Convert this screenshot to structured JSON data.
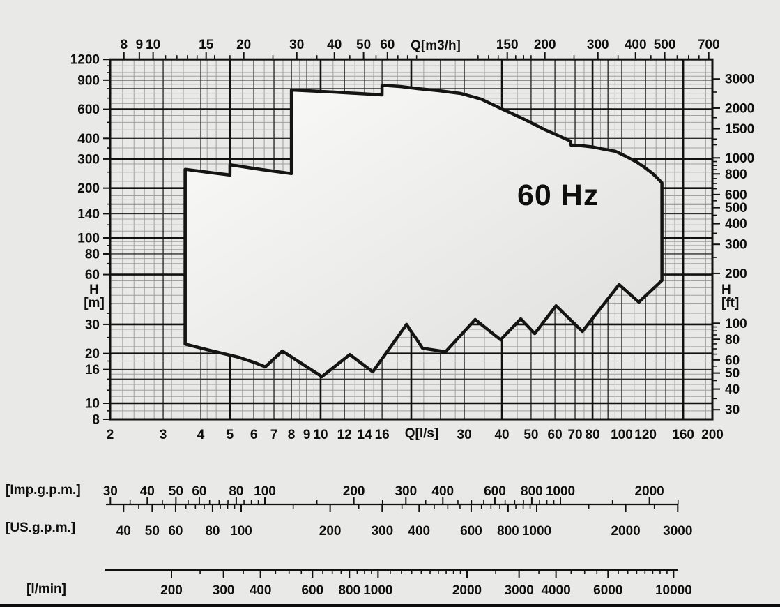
{
  "chart_data": {
    "type": "area",
    "title": "60 Hz",
    "description": "Pump performance envelope, flow (Q) vs head (H), log-log grid",
    "x_axes": {
      "top": {
        "label": "Q[m3/h]",
        "labeled_ticks": [
          8,
          9,
          10,
          15,
          20,
          30,
          40,
          50,
          60,
          150,
          200,
          300,
          400,
          500,
          700
        ],
        "minor_ticks": [
          11,
          12,
          13,
          14,
          16,
          18,
          25,
          35,
          45,
          55,
          65,
          70,
          75,
          120,
          130,
          140,
          160,
          170,
          180,
          250,
          350,
          450,
          550,
          600,
          650
        ]
      },
      "bottom": {
        "label": "Q[l/s]",
        "range_ls": [
          2,
          200
        ],
        "labeled_ticks": [
          2,
          3,
          4,
          5,
          6,
          7,
          8,
          9,
          10,
          12,
          14,
          16,
          30,
          40,
          50,
          60,
          70,
          80,
          100,
          120,
          160,
          200
        ],
        "minor_ticks": [
          2.2,
          2.5,
          2.8,
          3.5,
          4.5,
          5.5,
          6.5,
          7.5,
          8.5,
          9.5,
          11,
          13,
          15,
          35,
          45,
          55,
          65,
          75,
          85,
          90,
          95,
          110,
          130,
          140,
          150,
          170,
          180,
          190
        ]
      }
    },
    "y_axes": {
      "left": {
        "symbol": "H",
        "unit": "[m]",
        "range_m": [
          8,
          1200
        ],
        "labeled_ticks": [
          1200,
          900,
          600,
          400,
          300,
          200,
          140,
          100,
          80,
          60,
          30,
          20,
          16,
          10,
          8
        ],
        "minor_ticks": [
          9,
          12,
          14,
          18,
          25,
          35,
          70,
          90,
          120,
          160,
          250,
          350,
          500,
          700,
          800,
          1000,
          1100
        ]
      },
      "right": {
        "symbol": "H",
        "unit": "[ft]",
        "labeled_ticks": [
          3000,
          2000,
          1500,
          1000,
          800,
          600,
          500,
          400,
          300,
          200,
          100,
          80,
          60,
          50,
          40,
          30
        ],
        "minor_ticks": [
          35,
          45,
          55,
          65,
          70,
          75,
          85,
          90,
          95,
          250,
          350,
          450,
          550,
          650,
          700,
          750,
          850,
          900,
          950,
          1200,
          1300,
          1750,
          2500
        ]
      }
    },
    "grid": {
      "vertical_ls": {
        "thick": [
          5,
          10,
          20,
          40,
          80,
          160
        ],
        "medium": [
          3,
          4,
          6,
          7,
          8,
          9,
          12,
          14,
          16,
          25,
          30,
          50,
          60,
          70,
          90,
          100,
          120,
          140
        ],
        "minor": [
          2.2,
          2.4,
          2.6,
          2.8,
          3.2,
          3.5,
          4.2,
          4.5,
          5.5,
          6.5,
          7.5,
          8.5,
          9.5,
          11,
          13,
          15,
          17,
          18,
          22,
          28,
          35,
          45,
          55,
          65,
          75,
          85,
          95,
          110,
          130,
          150,
          170,
          190
        ]
      },
      "horizontal_m": {
        "thick": [
          10,
          20,
          30,
          60,
          100,
          200,
          300,
          600
        ],
        "medium": [
          14,
          16,
          40,
          80,
          140,
          160,
          400,
          800,
          900
        ],
        "minor": [
          9,
          11,
          12,
          13,
          15,
          18,
          22,
          25,
          28,
          35,
          45,
          50,
          55,
          65,
          70,
          75,
          85,
          90,
          95,
          110,
          120,
          130,
          150,
          170,
          180,
          220,
          250,
          280,
          350,
          450,
          500,
          550,
          650,
          700,
          750,
          850,
          950,
          1000,
          1100
        ]
      }
    },
    "envelope_q_ls_h_m": [
      [
        3.55,
        260
      ],
      [
        4.26,
        249
      ],
      [
        5,
        240
      ],
      [
        5,
        277
      ],
      [
        6.36,
        259
      ],
      [
        8,
        245
      ],
      [
        8,
        784
      ],
      [
        11.1,
        762
      ],
      [
        16,
        733
      ],
      [
        16,
        839
      ],
      [
        18.5,
        823
      ],
      [
        21,
        800
      ],
      [
        24.7,
        777
      ],
      [
        29.2,
        747
      ],
      [
        34.1,
        691
      ],
      [
        40,
        603
      ],
      [
        46.9,
        527
      ],
      [
        55.6,
        451
      ],
      [
        61.3,
        417
      ],
      [
        67.4,
        386
      ],
      [
        67.9,
        364
      ],
      [
        73.8,
        361
      ],
      [
        80,
        355
      ],
      [
        87.1,
        344
      ],
      [
        95.3,
        334
      ],
      [
        103,
        312
      ],
      [
        112,
        288
      ],
      [
        119,
        267
      ],
      [
        126,
        247
      ],
      [
        131,
        231
      ],
      [
        136,
        215
      ],
      [
        136,
        55.3
      ],
      [
        114,
        40.9
      ],
      [
        98,
        52.2
      ],
      [
        74,
        27.2
      ],
      [
        60.5,
        38.9
      ],
      [
        51.4,
        26.4
      ],
      [
        46.2,
        32.4
      ],
      [
        39.6,
        24.2
      ],
      [
        32.6,
        32.1
      ],
      [
        26,
        20.5
      ],
      [
        21.8,
        21.5
      ],
      [
        20.8,
        24.5
      ],
      [
        19.9,
        27.5
      ],
      [
        19.3,
        30
      ],
      [
        14.9,
        15.5
      ],
      [
        12.5,
        19.7
      ],
      [
        10.1,
        14.5
      ],
      [
        7.46,
        20.7
      ],
      [
        6.55,
        16.6
      ],
      [
        6.05,
        17.6
      ],
      [
        5.33,
        19
      ],
      [
        4.28,
        20.9
      ],
      [
        3.55,
        22.8
      ]
    ],
    "rulers": {
      "imp": {
        "caption": "[Imp.g.p.m.]",
        "labeled_ticks": [
          30,
          40,
          50,
          60,
          80,
          100,
          200,
          300,
          400,
          600,
          800,
          1000,
          2000
        ],
        "minor_ticks": [
          35,
          45,
          55,
          65,
          70,
          75,
          85,
          90,
          95,
          150,
          250,
          350,
          450,
          500,
          550,
          650,
          700,
          750,
          850,
          900,
          950,
          1500,
          2500
        ]
      },
      "us": {
        "caption": "[US.g.p.m.]",
        "labeled_ticks": [
          40,
          50,
          60,
          80,
          100,
          200,
          300,
          400,
          600,
          800,
          1000,
          2000,
          3000
        ],
        "minor_ticks": [
          45,
          55,
          65,
          70,
          75,
          85,
          90,
          95,
          150,
          250,
          350,
          450,
          500,
          550,
          650,
          700,
          750,
          850,
          900,
          950,
          1500,
          2500
        ]
      },
      "lmin": {
        "caption": "[l/min]",
        "labeled_ticks": [
          200,
          300,
          400,
          600,
          800,
          1000,
          2000,
          3000,
          4000,
          6000,
          10000
        ],
        "minor_ticks": [
          250,
          350,
          450,
          500,
          550,
          650,
          700,
          750,
          850,
          900,
          950,
          1100,
          1200,
          1300,
          1400,
          1500,
          1600,
          1700,
          1800,
          1900,
          2500,
          3500,
          4500,
          5000,
          5500,
          6500,
          7000,
          7500,
          8000,
          8500,
          9000,
          9500
        ]
      }
    },
    "colors": {
      "background": "#e9e9e7",
      "grid_minor": "#a0a09e",
      "grid_medium": "#2e2e2c",
      "grid_thick": "#111110",
      "envelope_stroke": "#141413",
      "envelope_fill_light": "#fbfbfa",
      "envelope_fill_dark": "#dededc",
      "text": "#0e0e0d",
      "bottom_bar": "#0c0c0c"
    }
  }
}
